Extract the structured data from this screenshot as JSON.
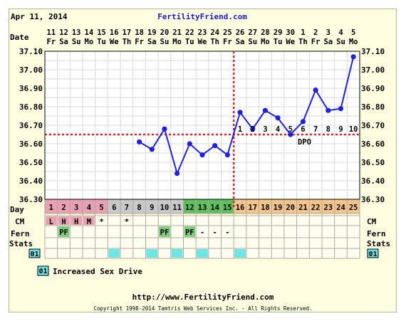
{
  "header": {
    "date": "Apr 11, 2014",
    "site": "FertilityFriend.com"
  },
  "row_labels": {
    "date": "Date",
    "day": "Day",
    "cm": "CM",
    "fern": "Fern",
    "stats": "Stats",
    "code": "01"
  },
  "legend": {
    "code": "01",
    "label": "Increased Sex Drive"
  },
  "footer": {
    "url": "http://www.FertilityFriend.com",
    "copyright": "Copyright 1998-2014 Tamtris Web Services Inc. - All Rights Reserved."
  },
  "colors": {
    "line": "#1f1fe6",
    "point": "#1f1fe6",
    "coverline": "#d42a2a",
    "menstrual": "#e8a0b3",
    "cycle_gray": "#c9c9c9",
    "fertile": "#5cc15c",
    "luteal": "#f5c48a",
    "fern_box": "#7ccd7c",
    "stats_box": "#6ee6e6",
    "title": "#1a1ad6"
  },
  "chart_data": {
    "type": "line",
    "dates": [
      "11",
      "12",
      "13",
      "14",
      "15",
      "16",
      "17",
      "18",
      "19",
      "20",
      "21",
      "22",
      "23",
      "24",
      "25",
      "26",
      "27",
      "28",
      "29",
      "30",
      "1",
      "2",
      "3",
      "4",
      "5"
    ],
    "weekdays": [
      "Fr",
      "Sa",
      "Su",
      "Mo",
      "Tu",
      "We",
      "Th",
      "Fr",
      "Sa",
      "Su",
      "Mo",
      "Tu",
      "We",
      "Th",
      "Fr",
      "Sa",
      "Su",
      "Mo",
      "Tu",
      "We",
      "Th",
      "Fr",
      "Sa",
      "Su",
      "Mo"
    ],
    "cycle_days": [
      1,
      2,
      3,
      4,
      5,
      6,
      7,
      8,
      9,
      10,
      11,
      12,
      13,
      14,
      15,
      16,
      17,
      18,
      19,
      20,
      21,
      22,
      23,
      24,
      25
    ],
    "day_phases": [
      "menstrual",
      "menstrual",
      "menstrual",
      "menstrual",
      "menstrual",
      "gray",
      "gray",
      "gray",
      "gray",
      "gray",
      "gray",
      "fertile",
      "fertile",
      "fertile",
      "fertile",
      "luteal",
      "luteal",
      "luteal",
      "luteal",
      "luteal",
      "luteal",
      "luteal",
      "luteal",
      "luteal",
      "luteal"
    ],
    "temperatures": [
      null,
      null,
      null,
      null,
      null,
      null,
      null,
      36.61,
      36.57,
      36.68,
      36.44,
      36.6,
      36.54,
      36.59,
      36.54,
      36.77,
      36.68,
      36.78,
      36.74,
      36.65,
      36.72,
      36.89,
      36.78,
      36.79,
      37.07
    ],
    "dpo_labels": [
      "",
      "",
      "",
      "",
      "",
      "",
      "",
      "",
      "",
      "",
      "",
      "",
      "",
      "",
      "",
      "1",
      "2",
      "3",
      "4",
      "5",
      "6",
      "7",
      "8",
      "9",
      "10"
    ],
    "dpo_text": "DPO",
    "coverline": 36.65,
    "ovulation_day": 15,
    "ylim": [
      36.3,
      37.1
    ],
    "yticks": [
      "37.10",
      "37.00",
      "36.90",
      "36.80",
      "36.70",
      "36.60",
      "36.50",
      "36.40",
      "36.30"
    ],
    "cm": [
      "L",
      "H",
      "H",
      "M",
      "*",
      "",
      "*",
      "",
      "",
      "",
      "",
      "",
      "",
      "",
      "",
      "",
      "",
      "",
      "",
      "",
      "",
      "",
      "",
      "",
      ""
    ],
    "fern": [
      "",
      "PF",
      "",
      "",
      "",
      "",
      "",
      "",
      "",
      "PF",
      "",
      "PF",
      "-",
      "-",
      "-",
      "",
      "",
      "",
      "",
      "",
      "",
      "",
      "",
      "",
      ""
    ],
    "stats": [
      "",
      "",
      "",
      "",
      "",
      "1",
      "",
      "",
      "1",
      "",
      "1",
      "",
      "1",
      "",
      "",
      "1",
      "",
      "",
      "",
      "",
      "",
      "",
      "",
      "",
      ""
    ],
    "grid": true
  }
}
